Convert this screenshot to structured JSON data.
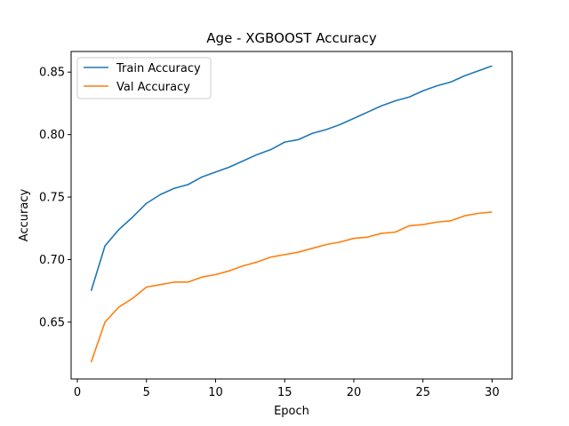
{
  "chart_data": {
    "type": "line",
    "title": "Age - XGBOOST Accuracy",
    "xlabel": "Epoch",
    "ylabel": "Accuracy",
    "xlim": [
      -0.45,
      31.45
    ],
    "ylim": [
      0.6045,
      0.8665
    ],
    "xticks": [
      0,
      5,
      10,
      15,
      20,
      25,
      30
    ],
    "yticks": [
      0.65,
      0.7,
      0.75,
      0.8,
      0.85
    ],
    "ytick_labels": [
      "0.65",
      "0.70",
      "0.75",
      "0.80",
      "0.85"
    ],
    "grid": false,
    "legend_position": "upper-left",
    "x": [
      1,
      2,
      3,
      4,
      5,
      6,
      7,
      8,
      9,
      10,
      11,
      12,
      13,
      14,
      15,
      16,
      17,
      18,
      19,
      20,
      21,
      22,
      23,
      24,
      25,
      26,
      27,
      28,
      29,
      30
    ],
    "series": [
      {
        "name": "Train Accuracy",
        "color": "#1f77b4",
        "values": [
          0.675,
          0.711,
          0.724,
          0.734,
          0.745,
          0.752,
          0.757,
          0.76,
          0.766,
          0.77,
          0.774,
          0.779,
          0.784,
          0.788,
          0.794,
          0.796,
          0.801,
          0.804,
          0.808,
          0.813,
          0.818,
          0.823,
          0.827,
          0.83,
          0.835,
          0.839,
          0.842,
          0.847,
          0.851,
          0.855
        ]
      },
      {
        "name": "Val Accuracy",
        "color": "#ff7f0e",
        "values": [
          0.618,
          0.65,
          0.662,
          0.669,
          0.678,
          0.68,
          0.682,
          0.682,
          0.686,
          0.688,
          0.691,
          0.695,
          0.698,
          0.702,
          0.704,
          0.706,
          0.709,
          0.712,
          0.714,
          0.717,
          0.718,
          0.721,
          0.722,
          0.727,
          0.728,
          0.73,
          0.731,
          0.735,
          0.737,
          0.738
        ]
      }
    ]
  }
}
